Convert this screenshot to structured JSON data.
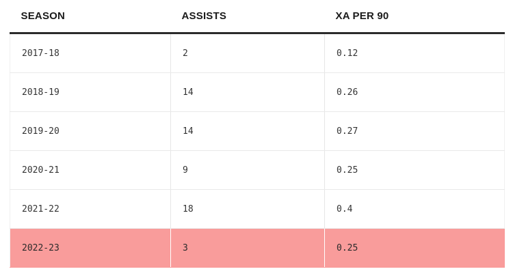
{
  "table": {
    "headers": {
      "season": "SEASON",
      "assists": "ASSISTS",
      "xa_per_90": "XA PER 90"
    },
    "rows": [
      {
        "season": "2017-18",
        "assists": "2",
        "xa_per_90": "0.12"
      },
      {
        "season": "2018-19",
        "assists": "14",
        "xa_per_90": "0.26"
      },
      {
        "season": "2019-20",
        "assists": "14",
        "xa_per_90": "0.27"
      },
      {
        "season": "2020-21",
        "assists": "9",
        "xa_per_90": "0.25"
      },
      {
        "season": "2021-22",
        "assists": "18",
        "xa_per_90": "0.4"
      },
      {
        "season": "2022-23",
        "assists": "3",
        "xa_per_90": "0.25"
      }
    ],
    "highlight_row_color": "#f99c9b",
    "highlighted_season": "2022-23"
  }
}
